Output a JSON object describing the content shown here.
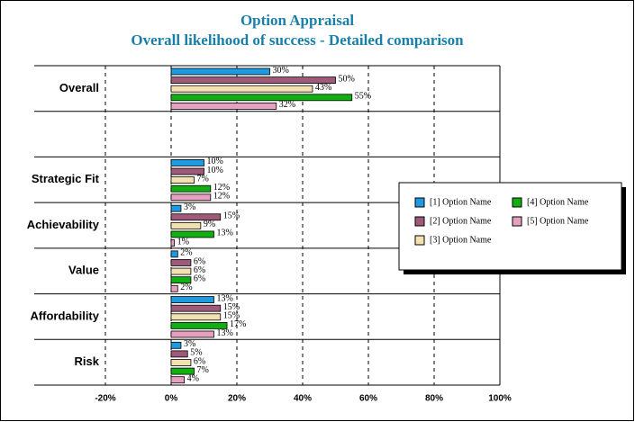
{
  "chart_data": {
    "type": "hbar",
    "title": "Option Appraisal",
    "subtitle": "Overall likelihood of success - Detailed comparison",
    "categories": [
      "Overall",
      null,
      "Strategic Fit",
      "Achievability",
      "Value",
      "Affordability",
      "Risk"
    ],
    "series": [
      {
        "name": "[1] Option Name",
        "color": "#1e9be0",
        "values": [
          30,
          null,
          10,
          3,
          2,
          13,
          3
        ],
        "value_labels": [
          "30%",
          null,
          "10%",
          "3%",
          "2%",
          "13%",
          "3%"
        ]
      },
      {
        "name": "[2] Option Name",
        "color": "#9e5a78",
        "values": [
          50,
          null,
          10,
          15,
          6,
          15,
          5
        ],
        "value_labels": [
          "50%",
          null,
          "10%",
          "15%",
          "6%",
          "15%",
          "5%"
        ]
      },
      {
        "name": "[3] Option Name",
        "color": "#f2e2b0",
        "values": [
          43,
          null,
          7,
          9,
          6,
          15,
          6
        ],
        "value_labels": [
          "43%",
          null,
          "7%",
          "9%",
          "6%",
          "15%",
          "6%"
        ]
      },
      {
        "name": "[4] Option Name",
        "color": "#10b010",
        "values": [
          55,
          null,
          12,
          13,
          6,
          17,
          7
        ],
        "value_labels": [
          "55%",
          null,
          "12%",
          "13%",
          "6%",
          "17%",
          "7%"
        ]
      },
      {
        "name": "[5] Option Name",
        "color": "#e6a0c0",
        "values": [
          32,
          null,
          12,
          1,
          2,
          13,
          4
        ],
        "value_labels": [
          "32%",
          null,
          "12%",
          "1%",
          "2%",
          "13%",
          "4%"
        ]
      }
    ],
    "xlim": [
      -20,
      100
    ],
    "xticks": [
      {
        "value": -20,
        "label": "-20%"
      },
      {
        "value": 0,
        "label": "0%"
      },
      {
        "value": 20,
        "label": "20%"
      },
      {
        "value": 40,
        "label": "40%"
      },
      {
        "value": 60,
        "label": "60%"
      },
      {
        "value": 80,
        "label": "80%"
      },
      {
        "value": 100,
        "label": "100%"
      }
    ],
    "grid": true,
    "legend": "right"
  }
}
